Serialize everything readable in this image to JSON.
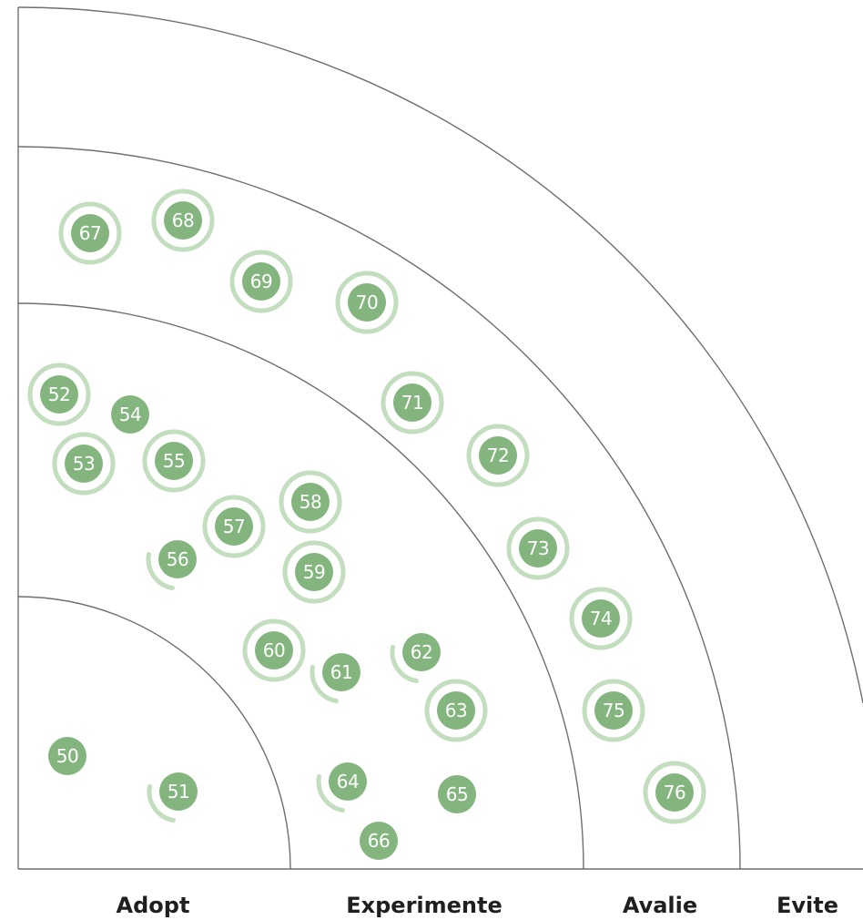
{
  "rings": [
    {
      "name": "Adopt"
    },
    {
      "name": "Experimente"
    },
    {
      "name": "Avalie"
    },
    {
      "name": "Evite"
    }
  ],
  "colors": {
    "blip": "#84b57e",
    "halo": "#c3ddbf",
    "rings": "#6f6f6f",
    "text": "#1f1f1f"
  },
  "blips": [
    {
      "label": "50",
      "ring": "Adopt",
      "status": "no-change"
    },
    {
      "label": "51",
      "ring": "Adopt",
      "status": "moved"
    },
    {
      "label": "52",
      "ring": "Experimente",
      "status": "new"
    },
    {
      "label": "53",
      "ring": "Experimente",
      "status": "new"
    },
    {
      "label": "54",
      "ring": "Experimente",
      "status": "no-change"
    },
    {
      "label": "55",
      "ring": "Experimente",
      "status": "new"
    },
    {
      "label": "56",
      "ring": "Experimente",
      "status": "moved"
    },
    {
      "label": "57",
      "ring": "Experimente",
      "status": "new"
    },
    {
      "label": "58",
      "ring": "Experimente",
      "status": "new"
    },
    {
      "label": "59",
      "ring": "Experimente",
      "status": "new"
    },
    {
      "label": "60",
      "ring": "Experimente",
      "status": "new"
    },
    {
      "label": "61",
      "ring": "Experimente",
      "status": "moved"
    },
    {
      "label": "62",
      "ring": "Experimente",
      "status": "moved"
    },
    {
      "label": "63",
      "ring": "Experimente",
      "status": "new"
    },
    {
      "label": "64",
      "ring": "Experimente",
      "status": "moved"
    },
    {
      "label": "65",
      "ring": "Experimente",
      "status": "no-change"
    },
    {
      "label": "66",
      "ring": "Experimente",
      "status": "no-change"
    },
    {
      "label": "67",
      "ring": "Avalie",
      "status": "new"
    },
    {
      "label": "68",
      "ring": "Avalie",
      "status": "new"
    },
    {
      "label": "69",
      "ring": "Avalie",
      "status": "new"
    },
    {
      "label": "70",
      "ring": "Avalie",
      "status": "new"
    },
    {
      "label": "71",
      "ring": "Avalie",
      "status": "new"
    },
    {
      "label": "72",
      "ring": "Avalie",
      "status": "new"
    },
    {
      "label": "73",
      "ring": "Avalie",
      "status": "new"
    },
    {
      "label": "74",
      "ring": "Avalie",
      "status": "new"
    },
    {
      "label": "75",
      "ring": "Avalie",
      "status": "new"
    },
    {
      "label": "76",
      "ring": "Avalie",
      "status": "new"
    }
  ]
}
